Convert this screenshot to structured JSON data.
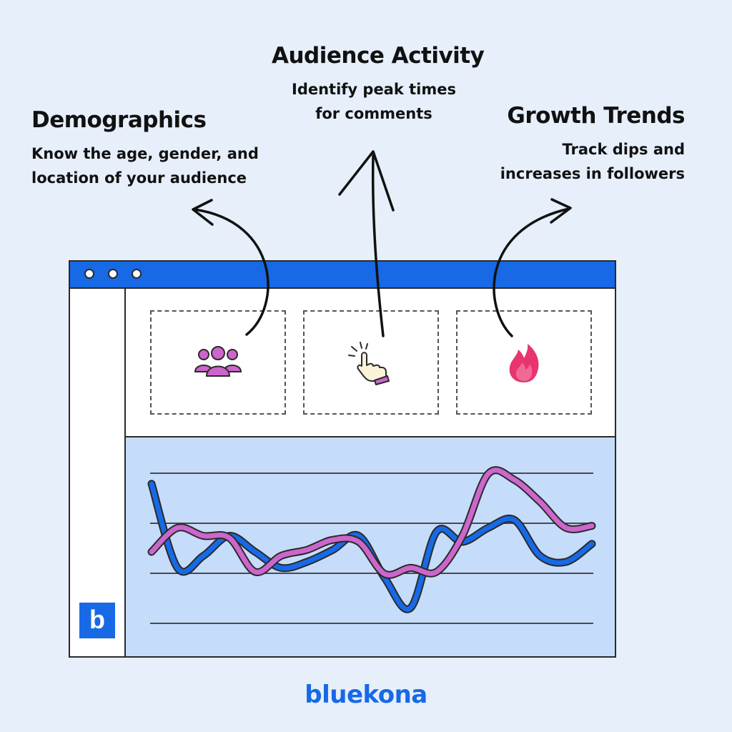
{
  "sections": {
    "demographics": {
      "title": "Demographics",
      "lines": [
        "Know the age, gender, and",
        "location of your audience"
      ],
      "icon": "people-group-icon"
    },
    "activity": {
      "title": "Audience Activity",
      "lines": [
        "Identify peak times",
        "for comments"
      ],
      "icon": "pointing-hand-click-icon"
    },
    "growth": {
      "title": "Growth Trends",
      "lines": [
        "Track dips and",
        "increases in followers"
      ],
      "icon": "flame-icon"
    }
  },
  "sidebar": {
    "logo_letter": "b"
  },
  "brand": {
    "name": "bluekona"
  },
  "colors": {
    "background": "#e6effa",
    "accent_blue": "#1769e6",
    "chart_panel": "#c6dcfb",
    "magenta": "#cc66cc",
    "flame": "#e8356f"
  },
  "chart_data": {
    "type": "line",
    "title": "",
    "xlabel": "",
    "ylabel": "",
    "grid": true,
    "ylim": [
      0,
      100
    ],
    "x": [
      0,
      1,
      2,
      3,
      4,
      5,
      6,
      7,
      8,
      9,
      10,
      11,
      12,
      13,
      14,
      15,
      16,
      17
    ],
    "series": [
      {
        "color": "#1769e6",
        "values": [
          84,
          42,
          48,
          58,
          50,
          42,
          45,
          51,
          58,
          37,
          22,
          60,
          55,
          62,
          66,
          48,
          45,
          54
        ]
      },
      {
        "color": "#cc66cc",
        "values": [
          50,
          62,
          58,
          57,
          40,
          48,
          51,
          56,
          55,
          39,
          42,
          40,
          58,
          89,
          86,
          75,
          62,
          63
        ]
      }
    ]
  }
}
